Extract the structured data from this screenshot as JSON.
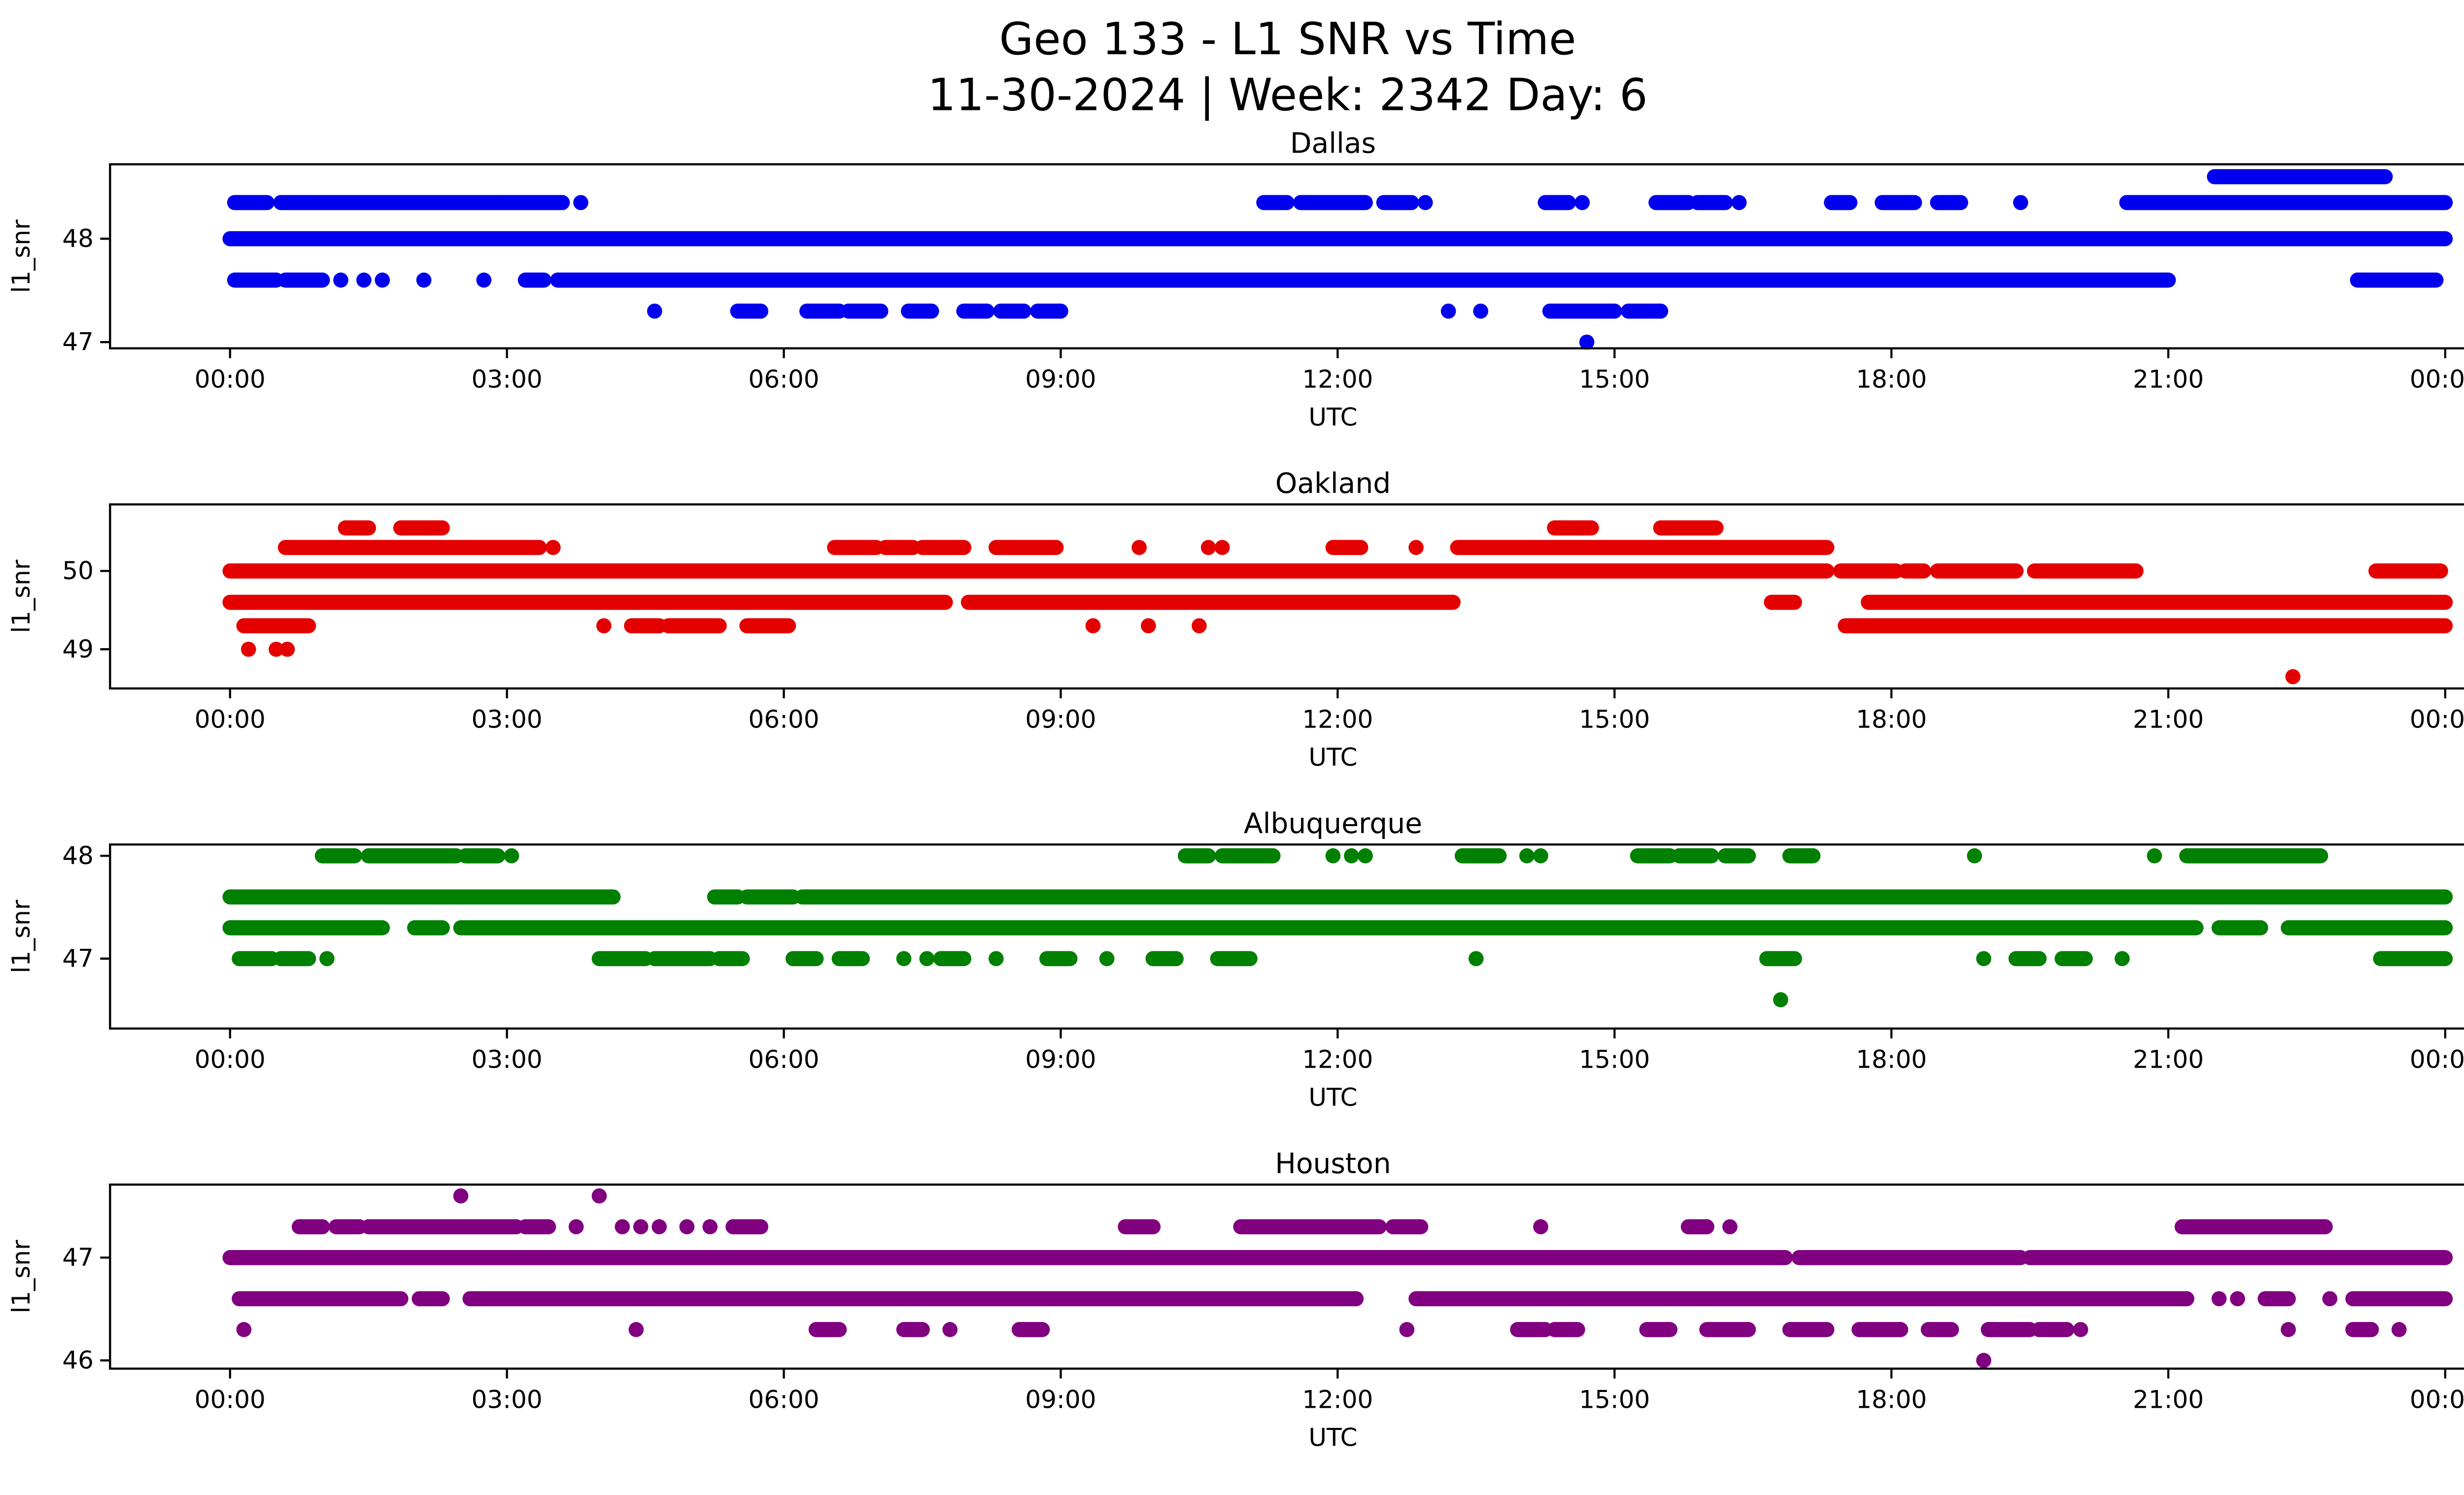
{
  "figure": {
    "title_line1": "Geo 133 - L1 SNR vs Time",
    "title_line2": "11-30-2024 | Week: 2342 Day: 6"
  },
  "chart_data": [
    {
      "type": "scatter",
      "title": "Dallas",
      "color": "#0000ee",
      "xlabel": "UTC",
      "ylabel": "l1_snr",
      "xlim": [
        -1.3,
        25.2
      ],
      "ylim": [
        46.94,
        48.72
      ],
      "yticks": [
        47,
        48
      ],
      "xticks": [
        0,
        3,
        6,
        9,
        12,
        15,
        18,
        21,
        24
      ],
      "xtick_labels": [
        "00:00",
        "03:00",
        "06:00",
        "09:00",
        "12:00",
        "15:00",
        "18:00",
        "21:00",
        "00:00"
      ],
      "legend": "off",
      "grid": "off",
      "bands": [
        {
          "y": 48.6,
          "segments": [
            [
              21.5,
              23.35
            ]
          ],
          "points": []
        },
        {
          "y": 48.35,
          "segments": [
            [
              0.05,
              0.4
            ],
            [
              0.55,
              3.6
            ],
            [
              11.2,
              11.45
            ],
            [
              11.6,
              12.3
            ],
            [
              12.5,
              12.8
            ],
            [
              14.25,
              14.5
            ],
            [
              15.45,
              15.8
            ],
            [
              15.9,
              16.2
            ],
            [
              17.35,
              17.55
            ],
            [
              17.9,
              18.25
            ],
            [
              18.5,
              18.75
            ],
            [
              20.55,
              24.0
            ]
          ],
          "points": [
            3.8,
            12.95,
            14.65,
            16.35,
            19.4
          ]
        },
        {
          "y": 48.0,
          "segments": [
            [
              0.0,
              24.0
            ]
          ],
          "points": []
        },
        {
          "y": 47.6,
          "segments": [
            [
              0.05,
              0.5
            ],
            [
              0.6,
              1.0
            ],
            [
              3.2,
              3.4
            ],
            [
              3.55,
              21.0
            ],
            [
              23.05,
              23.9
            ]
          ],
          "points": [
            1.2,
            1.45,
            1.65,
            2.1,
            2.75
          ]
        },
        {
          "y": 47.3,
          "segments": [
            [
              5.5,
              5.75
            ],
            [
              6.25,
              6.6
            ],
            [
              6.7,
              7.05
            ],
            [
              7.35,
              7.6
            ],
            [
              7.95,
              8.2
            ],
            [
              8.35,
              8.6
            ],
            [
              8.75,
              9.0
            ],
            [
              14.3,
              15.0
            ],
            [
              15.15,
              15.5
            ]
          ],
          "points": [
            4.6,
            13.2,
            13.55
          ]
        },
        {
          "y": 47.0,
          "segments": [],
          "points": [
            14.7
          ]
        }
      ]
    },
    {
      "type": "scatter",
      "title": "Oakland",
      "color": "#e50000",
      "xlabel": "UTC",
      "ylabel": "l1_snr",
      "xlim": [
        -1.3,
        25.2
      ],
      "ylim": [
        48.5,
        50.85
      ],
      "yticks": [
        49,
        50
      ],
      "xticks": [
        0,
        3,
        6,
        9,
        12,
        15,
        18,
        21,
        24
      ],
      "xtick_labels": [
        "00:00",
        "03:00",
        "06:00",
        "09:00",
        "12:00",
        "15:00",
        "18:00",
        "21:00",
        "00:00"
      ],
      "legend": "off",
      "grid": "off",
      "bands": [
        {
          "y": 50.55,
          "segments": [
            [
              1.25,
              1.5
            ],
            [
              1.85,
              2.3
            ],
            [
              14.35,
              14.75
            ],
            [
              15.5,
              16.1
            ]
          ],
          "points": []
        },
        {
          "y": 50.3,
          "segments": [
            [
              0.6,
              3.35
            ],
            [
              6.55,
              7.0
            ],
            [
              7.1,
              7.4
            ],
            [
              7.5,
              7.95
            ],
            [
              8.3,
              8.95
            ],
            [
              11.95,
              12.25
            ],
            [
              13.3,
              17.3
            ]
          ],
          "points": [
            3.5,
            9.85,
            10.6,
            10.75,
            12.85
          ]
        },
        {
          "y": 50.0,
          "segments": [
            [
              0.0,
              17.3
            ],
            [
              17.45,
              18.05
            ],
            [
              18.15,
              18.35
            ],
            [
              18.5,
              19.35
            ],
            [
              19.55,
              20.65
            ],
            [
              23.25,
              23.95
            ]
          ],
          "points": []
        },
        {
          "y": 49.6,
          "segments": [
            [
              0.0,
              7.75
            ],
            [
              8.0,
              13.25
            ],
            [
              16.7,
              16.95
            ],
            [
              17.75,
              24.0
            ]
          ],
          "points": []
        },
        {
          "y": 49.3,
          "segments": [
            [
              0.15,
              0.85
            ],
            [
              4.35,
              4.65
            ],
            [
              4.75,
              5.3
            ],
            [
              5.6,
              6.05
            ],
            [
              17.5,
              24.0
            ]
          ],
          "points": [
            4.05,
            9.35,
            9.95,
            10.5
          ]
        },
        {
          "y": 49.0,
          "segments": [],
          "points": [
            0.2,
            0.5,
            0.62
          ]
        },
        {
          "y": 48.65,
          "segments": [],
          "points": [
            22.35
          ]
        }
      ]
    },
    {
      "type": "scatter",
      "title": "Albuquerque",
      "color": "#008000",
      "xlabel": "UTC",
      "ylabel": "l1_snr",
      "xlim": [
        -1.3,
        25.2
      ],
      "ylim": [
        46.32,
        48.11
      ],
      "yticks": [
        47,
        48
      ],
      "xticks": [
        0,
        3,
        6,
        9,
        12,
        15,
        18,
        21,
        24
      ],
      "xtick_labels": [
        "00:00",
        "03:00",
        "06:00",
        "09:00",
        "12:00",
        "15:00",
        "18:00",
        "21:00",
        "00:00"
      ],
      "legend": "off",
      "grid": "off",
      "bands": [
        {
          "y": 48.0,
          "segments": [
            [
              1.0,
              1.35
            ],
            [
              1.5,
              2.45
            ],
            [
              2.55,
              2.9
            ],
            [
              10.35,
              10.6
            ],
            [
              10.75,
              11.3
            ],
            [
              13.35,
              13.75
            ],
            [
              15.25,
              15.6
            ],
            [
              15.7,
              16.05
            ],
            [
              16.2,
              16.45
            ],
            [
              16.9,
              17.15
            ],
            [
              21.2,
              22.65
            ]
          ],
          "points": [
            3.05,
            11.95,
            12.15,
            12.3,
            14.05,
            14.2,
            18.9,
            20.85
          ]
        },
        {
          "y": 47.6,
          "segments": [
            [
              0.0,
              4.15
            ],
            [
              5.25,
              5.5
            ],
            [
              5.6,
              6.1
            ],
            [
              6.2,
              24.0
            ]
          ],
          "points": []
        },
        {
          "y": 47.3,
          "segments": [
            [
              0.0,
              1.65
            ],
            [
              2.0,
              2.3
            ],
            [
              2.5,
              21.3
            ],
            [
              21.55,
              22.0
            ],
            [
              22.3,
              24.0
            ]
          ],
          "points": []
        },
        {
          "y": 47.0,
          "segments": [
            [
              0.1,
              0.45
            ],
            [
              0.55,
              0.85
            ],
            [
              4.0,
              4.5
            ],
            [
              4.6,
              5.2
            ],
            [
              5.3,
              5.55
            ],
            [
              6.1,
              6.35
            ],
            [
              6.6,
              6.85
            ],
            [
              7.7,
              7.95
            ],
            [
              8.85,
              9.1
            ],
            [
              10.0,
              10.25
            ],
            [
              10.7,
              11.05
            ],
            [
              16.65,
              16.95
            ],
            [
              19.35,
              19.6
            ],
            [
              19.85,
              20.1
            ],
            [
              23.3,
              24.0
            ]
          ],
          "points": [
            1.05,
            7.3,
            7.55,
            8.3,
            9.5,
            13.5,
            19.0,
            20.5
          ]
        },
        {
          "y": 46.6,
          "segments": [],
          "points": [
            16.8
          ]
        }
      ]
    },
    {
      "type": "scatter",
      "title": "Houston",
      "color": "#800080",
      "xlabel": "UTC",
      "ylabel": "l1_snr",
      "xlim": [
        -1.3,
        25.2
      ],
      "ylim": [
        45.92,
        47.71
      ],
      "yticks": [
        46,
        47
      ],
      "xticks": [
        0,
        3,
        6,
        9,
        12,
        15,
        18,
        21,
        24
      ],
      "xtick_labels": [
        "00:00",
        "03:00",
        "06:00",
        "09:00",
        "12:00",
        "15:00",
        "18:00",
        "21:00",
        "00:00"
      ],
      "legend": "off",
      "grid": "off",
      "bands": [
        {
          "y": 47.6,
          "segments": [],
          "points": [
            2.5,
            4.0
          ]
        },
        {
          "y": 47.3,
          "segments": [
            [
              0.75,
              1.0
            ],
            [
              1.15,
              1.4
            ],
            [
              1.5,
              3.1
            ],
            [
              3.2,
              3.45
            ],
            [
              5.45,
              5.75
            ],
            [
              9.7,
              10.0
            ],
            [
              10.95,
              12.45
            ],
            [
              12.6,
              12.9
            ],
            [
              15.8,
              16.0
            ],
            [
              21.15,
              22.7
            ]
          ],
          "points": [
            3.75,
            4.25,
            4.45,
            4.65,
            4.95,
            5.2,
            14.2,
            16.25
          ]
        },
        {
          "y": 47.0,
          "segments": [
            [
              0.0,
              16.85
            ],
            [
              17.0,
              19.4
            ],
            [
              19.5,
              24.0
            ]
          ],
          "points": []
        },
        {
          "y": 46.6,
          "segments": [
            [
              0.1,
              1.85
            ],
            [
              2.05,
              2.3
            ],
            [
              2.6,
              12.2
            ],
            [
              12.85,
              21.2
            ],
            [
              22.05,
              22.3
            ],
            [
              23.0,
              24.0
            ]
          ],
          "points": [
            21.55,
            21.75,
            22.75
          ]
        },
        {
          "y": 46.3,
          "segments": [
            [
              6.35,
              6.6
            ],
            [
              7.3,
              7.5
            ],
            [
              8.55,
              8.8
            ],
            [
              13.95,
              14.25
            ],
            [
              14.35,
              14.6
            ],
            [
              15.35,
              15.6
            ],
            [
              16.0,
              16.45
            ],
            [
              16.9,
              17.3
            ],
            [
              17.65,
              18.1
            ],
            [
              18.4,
              18.65
            ],
            [
              19.05,
              19.5
            ],
            [
              19.6,
              19.9
            ],
            [
              23.0,
              23.2
            ]
          ],
          "points": [
            0.15,
            4.4,
            7.8,
            12.75,
            20.05,
            22.3,
            23.5
          ]
        },
        {
          "y": 46.0,
          "segments": [],
          "points": [
            19.0
          ]
        }
      ]
    }
  ]
}
